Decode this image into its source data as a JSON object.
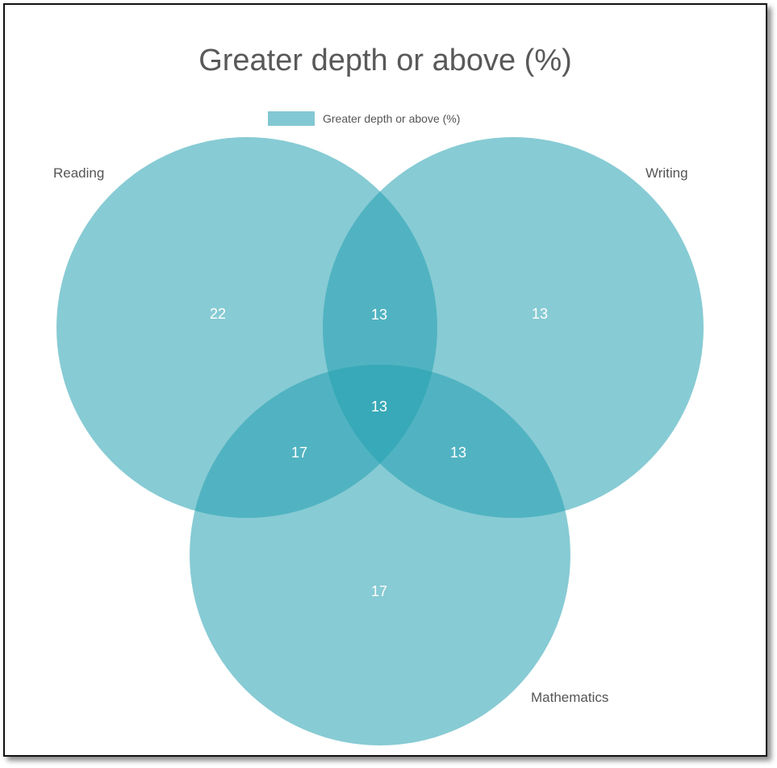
{
  "title": "Greater depth or above (%)",
  "legend": {
    "label": "Greater depth or above (%)",
    "color": "#82c8d2"
  },
  "colors": {
    "circle_fill": "#24a0b0",
    "circle_opacity": 0.55
  },
  "sets": [
    {
      "label": "Reading"
    },
    {
      "label": "Writing"
    },
    {
      "label": "Mathematics"
    }
  ],
  "regions": {
    "reading_only": "22",
    "writing_only": "13",
    "mathematics_only": "17",
    "reading_writing": "13",
    "reading_mathematics": "17",
    "writing_mathematics": "13",
    "all_three": "13"
  }
}
